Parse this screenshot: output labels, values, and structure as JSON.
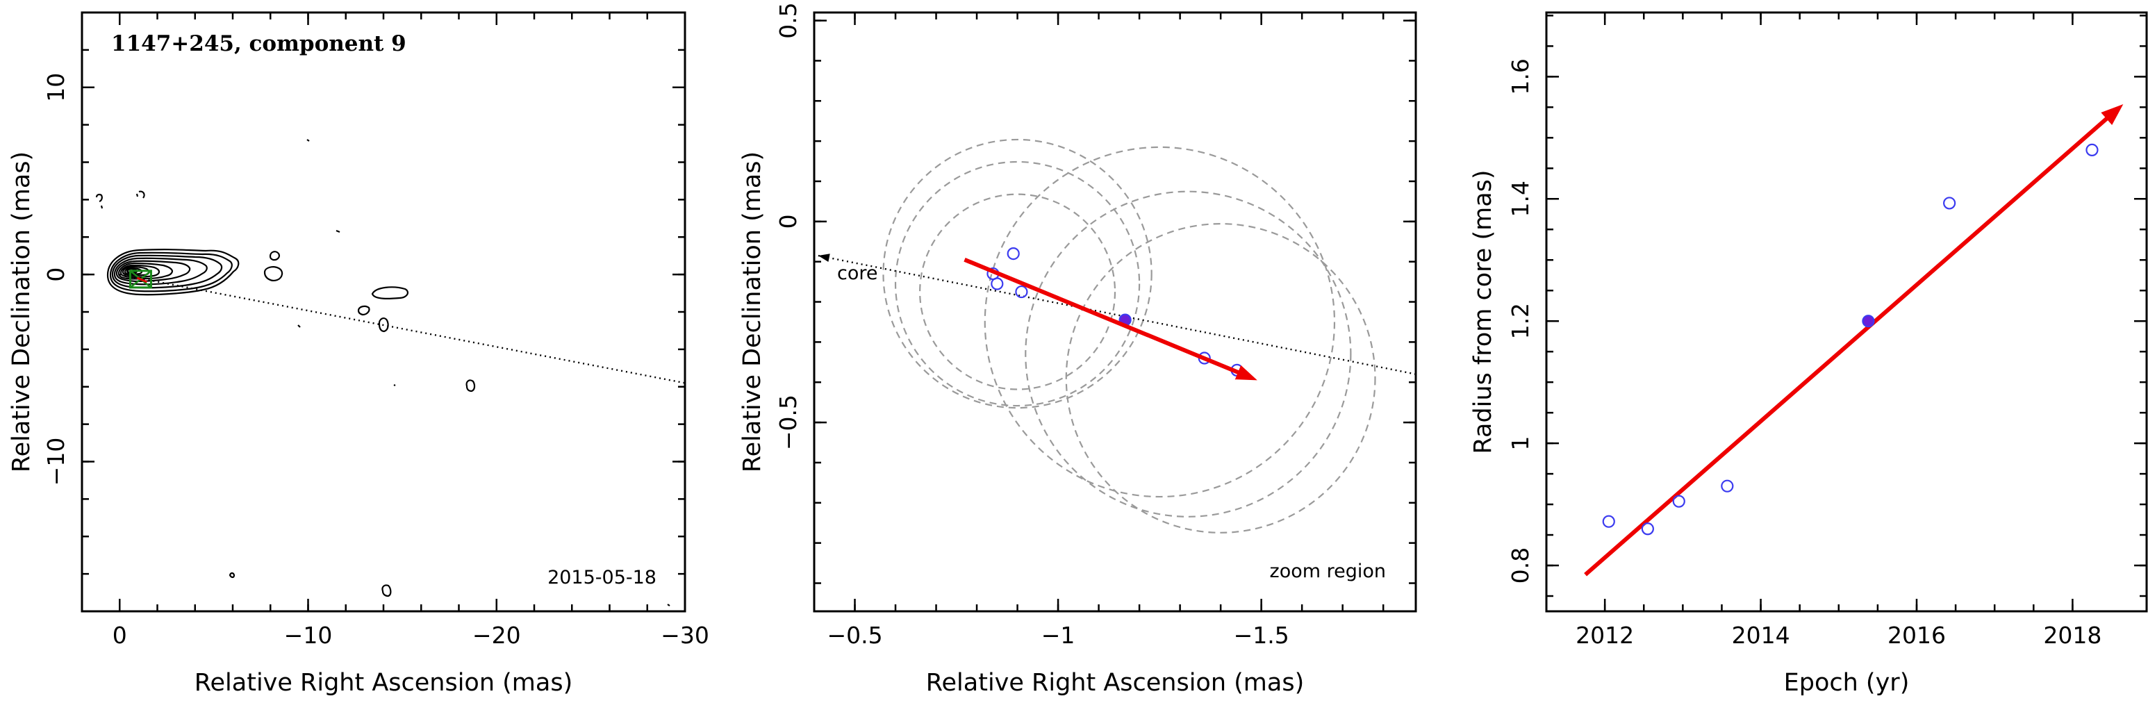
{
  "chart_data": [
    {
      "type": "scatter",
      "panel": "contour-map",
      "title": "1147+245, component 9",
      "date_label": "2015-05-18",
      "xlabel": "Relative Right Ascension (mas)",
      "ylabel": "Relative Declination (mas)",
      "xlim": [
        2,
        -30
      ],
      "ylim": [
        -18,
        14
      ],
      "xticks": [
        0,
        -10,
        -20,
        -30
      ],
      "yticks": [
        10,
        0,
        -10
      ],
      "core_direction_line": {
        "from": [
          0,
          0
        ],
        "to": [
          -30,
          -5.8
        ]
      },
      "component_position": [
        -1.15,
        -0.25
      ]
    },
    {
      "type": "scatter",
      "panel": "zoom-region",
      "region_label": "zoom region",
      "core_label": "core",
      "xlabel": "Relative Right Ascension (mas)",
      "ylabel": "Relative Declination (mas)",
      "xlim": [
        -0.4,
        -1.88
      ],
      "ylim": [
        -0.97,
        0.52
      ],
      "xticks": [
        -0.5,
        -1,
        -1.5
      ],
      "xtick_labels": [
        "−0.5",
        "−1",
        "−1.5"
      ],
      "yticks": [
        0.5,
        0,
        -0.5
      ],
      "ytick_labels": [
        "0.5",
        "0",
        "−0.5"
      ],
      "open_points": [
        {
          "x": -0.89,
          "y": -0.08
        },
        {
          "x": -0.84,
          "y": -0.13
        },
        {
          "x": -0.85,
          "y": -0.155
        },
        {
          "x": -0.91,
          "y": -0.175
        },
        {
          "x": -1.36,
          "y": -0.34
        },
        {
          "x": -1.44,
          "y": -0.37
        }
      ],
      "reference_point": {
        "x": -1.165,
        "y": -0.245
      },
      "error_circles": [
        {
          "cx": -0.9,
          "cy": -0.13,
          "r": 0.33
        },
        {
          "cx": -0.9,
          "cy": -0.155,
          "r": 0.3
        },
        {
          "cx": -0.9,
          "cy": -0.175,
          "r": 0.24
        },
        {
          "cx": -1.25,
          "cy": -0.25,
          "r": 0.43
        },
        {
          "cx": -1.32,
          "cy": -0.33,
          "r": 0.4
        },
        {
          "cx": -1.4,
          "cy": -0.39,
          "r": 0.38
        }
      ],
      "motion_vector": {
        "from": [
          -0.77,
          -0.095
        ],
        "to": [
          -1.49,
          -0.395
        ]
      },
      "core_direction_line": {
        "from": [
          -1.88,
          -0.38
        ],
        "to": [
          -0.41,
          -0.085
        ]
      }
    },
    {
      "type": "scatter",
      "panel": "radius-vs-epoch",
      "xlabel": "Epoch (yr)",
      "ylabel": "Radius from core (mas)",
      "xlim": [
        2011.25,
        2018.95
      ],
      "ylim": [
        0.725,
        1.705
      ],
      "xticks": [
        2012,
        2014,
        2016,
        2018
      ],
      "yticks": [
        0.8,
        1,
        1.2,
        1.4,
        1.6
      ],
      "open_points": [
        {
          "x": 2012.05,
          "y": 0.872
        },
        {
          "x": 2012.55,
          "y": 0.86
        },
        {
          "x": 2012.95,
          "y": 0.905
        },
        {
          "x": 2013.57,
          "y": 0.93
        },
        {
          "x": 2016.42,
          "y": 1.393
        },
        {
          "x": 2018.25,
          "y": 1.48
        }
      ],
      "reference_point": {
        "x": 2015.38,
        "y": 1.2
      },
      "fit_line": {
        "from": [
          2011.75,
          0.785
        ],
        "to": [
          2018.65,
          1.555
        ]
      }
    }
  ]
}
